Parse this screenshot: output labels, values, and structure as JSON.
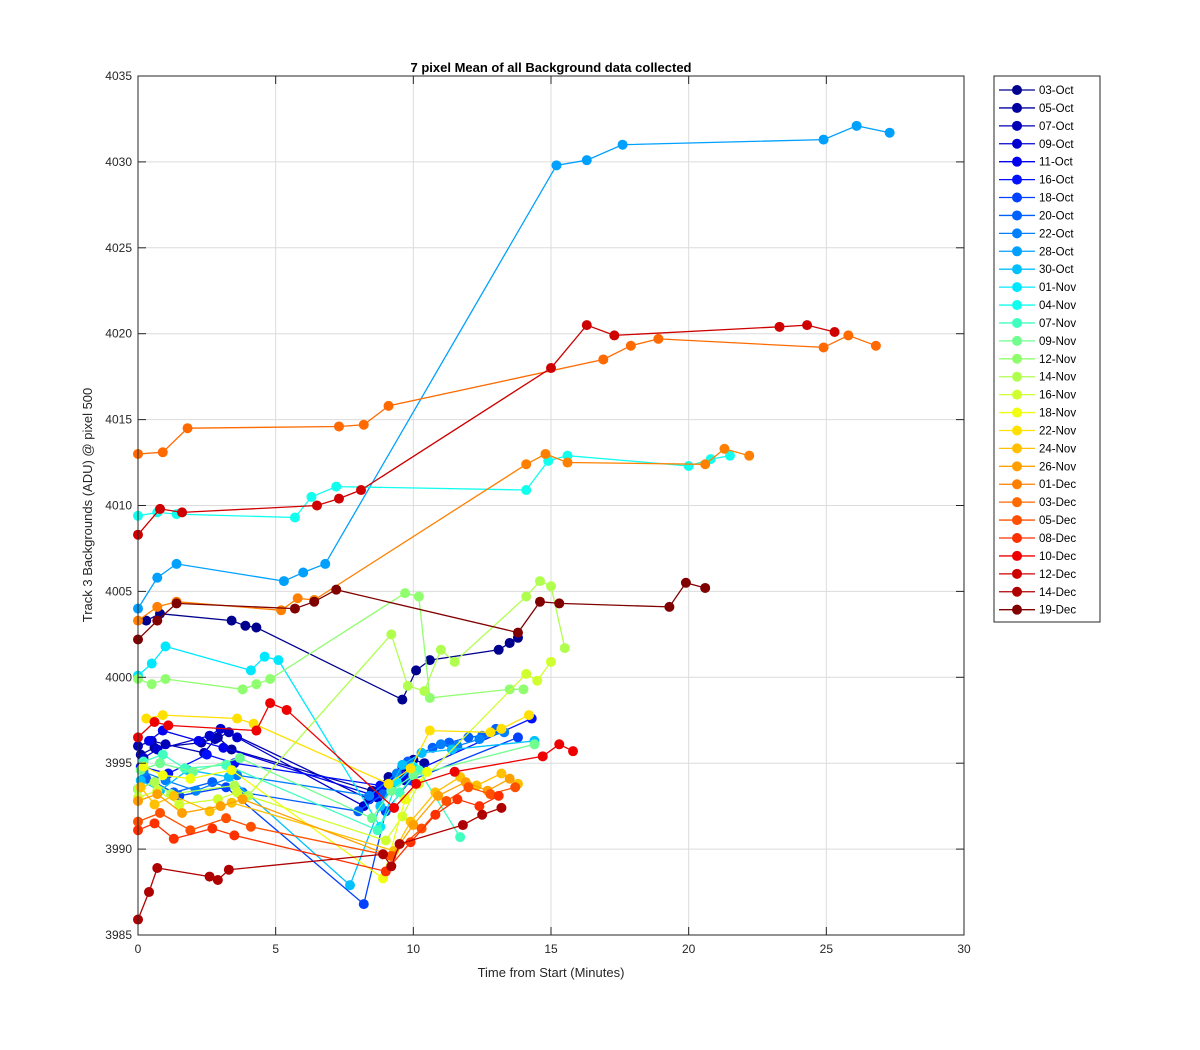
{
  "chart_data": {
    "type": "line",
    "title": "7 pixel Mean of all Background data collected",
    "xlabel": "Time from Start (Minutes)",
    "ylabel": "Track 3 Backgrounds (ADU) @ pixel 500",
    "xlim": [
      0,
      30
    ],
    "ylim": [
      3985,
      4035
    ],
    "xticks": [
      0,
      5,
      10,
      15,
      20,
      25,
      30
    ],
    "yticks": [
      3985,
      3990,
      3995,
      4000,
      4005,
      4010,
      4015,
      4020,
      4025,
      4030,
      4035
    ],
    "grid": true,
    "legend_position": "outside-right",
    "series": [
      {
        "name": "03-Oct",
        "color": "#00008f",
        "x": [
          0.3,
          0.8,
          3.4,
          3.9,
          4.3,
          9.6,
          10.1,
          10.6,
          13.1,
          13.5,
          13.8
        ],
        "y": [
          4003.3,
          4003.7,
          4003.3,
          4003.0,
          4002.9,
          3998.7,
          4000.4,
          4001.0,
          4001.6,
          4002.0,
          4002.3
        ]
      },
      {
        "name": "05-Oct",
        "color": "#0000a0",
        "x": [
          0.1,
          0.6,
          2.3,
          2.9,
          3.4,
          8.5,
          9.1,
          9.6,
          10.0,
          10.4
        ],
        "y": [
          3995.5,
          3995.9,
          3996.2,
          3996.5,
          3995.8,
          3993.4,
          3994.2,
          3994.8,
          3995.2,
          3995.0
        ]
      },
      {
        "name": "07-Oct",
        "color": "#0000b7",
        "x": [
          0.0,
          0.5,
          1.0,
          2.4,
          2.8,
          3.3,
          8.4,
          8.8,
          9.3,
          9.8
        ],
        "y": [
          3996.0,
          3996.3,
          3996.1,
          3995.6,
          3996.4,
          3996.8,
          3992.9,
          3993.5,
          3994.1,
          3994.4
        ]
      },
      {
        "name": "09-Oct",
        "color": "#0000cf",
        "x": [
          0.2,
          0.7,
          2.6,
          3.0,
          3.6,
          8.2,
          8.7,
          9.2,
          9.7
        ],
        "y": [
          3995.3,
          3995.8,
          3996.6,
          3997.0,
          3996.5,
          3992.5,
          3993.0,
          3993.6,
          3994.0
        ]
      },
      {
        "name": "11-Oct",
        "color": "#0000ef",
        "x": [
          0.4,
          0.9,
          2.2,
          3.1,
          8.6,
          9.0,
          9.5,
          10.1
        ],
        "y": [
          3996.3,
          3996.9,
          3996.3,
          3995.9,
          3993.1,
          3993.7,
          3994.3,
          3994.6
        ]
      },
      {
        "name": "16-Oct",
        "color": "#0010ff",
        "x": [
          0.1,
          1.1,
          2.5,
          3.5,
          8.8,
          9.3,
          10.0,
          14.3
        ],
        "y": [
          3994.8,
          3994.4,
          3995.5,
          3995.0,
          3993.7,
          3994.0,
          3994.5,
          3997.6
        ]
      },
      {
        "name": "18-Oct",
        "color": "#0040ff",
        "x": [
          0.0,
          0.6,
          1.5,
          3.2,
          8.2,
          9.0,
          9.9,
          13.8
        ],
        "y": [
          3993.5,
          3993.9,
          3993.1,
          3993.6,
          3986.8,
          3992.2,
          3994.0,
          3996.5
        ]
      },
      {
        "name": "20-Oct",
        "color": "#0060ff",
        "x": [
          0.3,
          1.3,
          2.7,
          3.8,
          8.0,
          8.9,
          9.8,
          10.7,
          11.3,
          12.0,
          12.5,
          13.0
        ],
        "y": [
          3994.1,
          3993.3,
          3993.9,
          3993.3,
          3992.2,
          3993.2,
          3995.1,
          3995.9,
          3996.2,
          3996.5,
          3996.6,
          3997.0
        ]
      },
      {
        "name": "22-Oct",
        "color": "#0080ff",
        "x": [
          0.2,
          1.0,
          2.1,
          3.6,
          8.4,
          9.4,
          10.3,
          11.0,
          11.6,
          12.4,
          13.3
        ],
        "y": [
          3994.5,
          3994.0,
          3993.4,
          3994.3,
          3993.1,
          3994.4,
          3995.6,
          3996.1,
          3996.0,
          3996.4,
          3996.8
        ]
      },
      {
        "name": "28-Oct",
        "color": "#00a0ff",
        "x": [
          0.0,
          0.7,
          1.4,
          5.3,
          6.0,
          6.8,
          15.2,
          16.3,
          17.6,
          24.9,
          26.1,
          27.3
        ],
        "y": [
          4004.0,
          4005.8,
          4006.6,
          4005.6,
          4006.1,
          4006.6,
          4029.8,
          4030.1,
          4031.0,
          4031.3,
          4032.1,
          4031.7
        ]
      },
      {
        "name": "30-Oct",
        "color": "#00c0ff",
        "x": [
          0.1,
          0.8,
          1.8,
          3.3,
          7.7,
          8.8,
          9.6,
          10.3,
          11.4,
          14.4
        ],
        "y": [
          3994.0,
          3993.4,
          3994.6,
          3994.2,
          3987.9,
          3992.5,
          3994.9,
          3995.6,
          3995.8,
          3996.3
        ]
      },
      {
        "name": "01-Nov",
        "color": "#00e8ff",
        "x": [
          0.0,
          0.5,
          1.0,
          4.1,
          4.6,
          5.1,
          8.8,
          9.4,
          10.0
        ],
        "y": [
          4000.1,
          4000.8,
          4001.8,
          4000.4,
          4001.2,
          4001.0,
          3991.3,
          3993.9,
          3994.8
        ]
      },
      {
        "name": "04-Nov",
        "color": "#10ffef",
        "x": [
          0.0,
          0.7,
          1.4,
          5.7,
          6.3,
          7.2,
          14.1,
          14.9,
          15.6,
          20.0,
          20.8,
          21.5
        ],
        "y": [
          4009.4,
          4009.6,
          4009.5,
          4009.3,
          4010.5,
          4011.1,
          4010.9,
          4012.6,
          4012.9,
          4012.3,
          4012.7,
          4012.9
        ]
      },
      {
        "name": "07-Nov",
        "color": "#40ffbf",
        "x": [
          0.2,
          0.9,
          1.7,
          3.2,
          8.7,
          9.5,
          10.2,
          11.7
        ],
        "y": [
          3995.1,
          3995.5,
          3994.7,
          3994.9,
          3991.1,
          3993.3,
          3994.6,
          3990.7
        ]
      },
      {
        "name": "09-Nov",
        "color": "#70ff8f",
        "x": [
          0.1,
          0.8,
          2.0,
          3.7,
          8.5,
          9.2,
          10.0,
          14.4
        ],
        "y": [
          3994.6,
          3995.0,
          3994.5,
          3995.3,
          3991.8,
          3993.4,
          3994.3,
          3996.1
        ]
      },
      {
        "name": "12-Nov",
        "color": "#90ff6f",
        "x": [
          0.0,
          0.5,
          1.0,
          3.8,
          4.3,
          4.8,
          9.7,
          10.2,
          10.6,
          13.5,
          14.0
        ],
        "y": [
          3999.9,
          3999.6,
          3999.9,
          3999.3,
          3999.6,
          3999.9,
          4004.9,
          4004.7,
          3998.8,
          3999.3,
          3999.3
        ]
      },
      {
        "name": "14-Nov",
        "color": "#b0ff4f",
        "x": [
          0.0,
          0.6,
          1.2,
          3.5,
          4.0,
          9.2,
          9.8,
          10.4,
          11.0,
          11.5,
          14.1,
          14.6,
          15.0,
          15.5
        ],
        "y": [
          3993.5,
          3993.9,
          3993.2,
          3993.7,
          3993.1,
          4002.5,
          3999.5,
          3999.2,
          4001.6,
          4000.9,
          4004.7,
          4005.6,
          4005.3,
          4001.7
        ]
      },
      {
        "name": "16-Nov",
        "color": "#d0ff2f",
        "x": [
          0.0,
          0.7,
          1.5,
          2.9,
          3.6,
          9.0,
          9.6,
          10.2,
          14.1,
          14.5,
          15.0
        ],
        "y": [
          3993.0,
          3993.4,
          3992.6,
          3992.9,
          3993.3,
          3990.5,
          3991.9,
          3993.8,
          4000.2,
          3999.8,
          4000.9
        ]
      },
      {
        "name": "18-Nov",
        "color": "#f0ff0f",
        "x": [
          0.2,
          0.9,
          1.9,
          3.4,
          8.9,
          9.7,
          10.5
        ],
        "y": [
          3994.8,
          3994.3,
          3994.1,
          3994.6,
          3988.3,
          3992.9,
          3994.5
        ]
      },
      {
        "name": "22-Nov",
        "color": "#ffe000",
        "x": [
          0.3,
          0.9,
          3.6,
          4.2,
          9.1,
          9.9,
          10.6,
          12.8,
          13.2,
          14.2
        ],
        "y": [
          3997.6,
          3997.8,
          3997.6,
          3997.3,
          3993.8,
          3994.7,
          3996.9,
          3996.8,
          3997.0,
          3997.8
        ]
      },
      {
        "name": "24-Nov",
        "color": "#ffc000",
        "x": [
          0.1,
          0.6,
          1.3,
          2.6,
          3.4,
          9.3,
          9.9,
          10.8,
          11.7,
          12.3,
          13.2,
          13.8
        ],
        "y": [
          3993.6,
          3992.6,
          3993.1,
          3992.2,
          3992.7,
          3989.9,
          3991.6,
          3993.3,
          3994.2,
          3993.7,
          3994.4,
          3993.8
        ]
      },
      {
        "name": "26-Nov",
        "color": "#ffa000",
        "x": [
          0.0,
          0.7,
          1.6,
          3.0,
          3.8,
          9.2,
          10.0,
          10.9,
          11.9,
          12.7,
          13.5
        ],
        "y": [
          3992.8,
          3993.2,
          3992.1,
          3992.5,
          3992.9,
          3989.6,
          3991.4,
          3993.1,
          3993.9,
          3993.4,
          3994.1
        ]
      },
      {
        "name": "01-Dec",
        "color": "#ff8000",
        "x": [
          0.0,
          0.7,
          1.4,
          5.2,
          5.8,
          6.4,
          14.1,
          14.8,
          15.6,
          20.6,
          21.3,
          22.2
        ],
        "y": [
          4003.3,
          4004.1,
          4004.4,
          4003.9,
          4004.6,
          4004.5,
          4012.4,
          4013.0,
          4012.5,
          4012.4,
          4013.3,
          4012.9
        ]
      },
      {
        "name": "03-Dec",
        "color": "#ff6a00",
        "x": [
          0.0,
          0.9,
          1.8,
          7.3,
          8.2,
          9.1,
          16.9,
          17.9,
          18.9,
          24.9,
          25.8,
          26.8
        ],
        "y": [
          4013.0,
          4013.1,
          4014.5,
          4014.6,
          4014.7,
          4015.8,
          4018.5,
          4019.3,
          4019.7,
          4019.2,
          4019.9,
          4019.3
        ]
      },
      {
        "name": "05-Dec",
        "color": "#ff5000",
        "x": [
          0.0,
          0.8,
          1.9,
          3.2,
          4.1,
          9.2,
          10.3,
          11.2,
          12.0,
          12.8,
          13.7
        ],
        "y": [
          3991.6,
          3992.1,
          3991.1,
          3991.8,
          3991.3,
          3989.6,
          3991.2,
          3992.8,
          3993.6,
          3993.2,
          3993.6
        ]
      },
      {
        "name": "08-Dec",
        "color": "#ff3000",
        "x": [
          0.0,
          0.6,
          1.3,
          2.7,
          3.5,
          9.0,
          9.9,
          10.8,
          11.6,
          12.4,
          13.1
        ],
        "y": [
          3991.1,
          3991.5,
          3990.6,
          3991.2,
          3990.8,
          3988.7,
          3990.4,
          3992.0,
          3992.9,
          3992.5,
          3993.1
        ]
      },
      {
        "name": "10-Dec",
        "color": "#ef0000",
        "x": [
          0.0,
          0.6,
          1.1,
          4.3,
          4.8,
          5.4,
          9.3,
          10.1,
          11.5,
          14.7,
          15.3,
          15.8
        ],
        "y": [
          3996.5,
          3997.4,
          3997.2,
          3996.9,
          3998.5,
          3998.1,
          3992.4,
          3993.8,
          3994.5,
          3995.4,
          3996.1,
          3995.7
        ]
      },
      {
        "name": "12-Dec",
        "color": "#cf0000",
        "x": [
          0.0,
          0.8,
          1.6,
          6.5,
          7.3,
          8.1,
          15.0,
          16.3,
          17.3,
          23.3,
          24.3,
          25.3
        ],
        "y": [
          4008.3,
          4009.8,
          4009.6,
          4010.0,
          4010.4,
          4010.9,
          4018.0,
          4020.5,
          4019.9,
          4020.4,
          4020.5,
          4020.1
        ]
      },
      {
        "name": "14-Dec",
        "color": "#af0000",
        "x": [
          0.0,
          0.4,
          0.7,
          2.6,
          2.9,
          3.3,
          8.9,
          9.2,
          9.5,
          11.8,
          12.5,
          13.2
        ],
        "y": [
          3985.9,
          3987.5,
          3988.9,
          3988.4,
          3988.2,
          3988.8,
          3989.7,
          3989.0,
          3990.3,
          3991.4,
          3992.0,
          3992.4
        ]
      },
      {
        "name": "19-Dec",
        "color": "#800000",
        "x": [
          0.0,
          0.7,
          1.4,
          5.7,
          6.4,
          7.2,
          13.8,
          14.6,
          15.3,
          19.3,
          19.9,
          20.6
        ],
        "y": [
          4002.2,
          4003.3,
          4004.3,
          4004.0,
          4004.4,
          4005.1,
          4002.6,
          4004.4,
          4004.3,
          4004.1,
          4005.5,
          4005.2
        ]
      }
    ]
  }
}
